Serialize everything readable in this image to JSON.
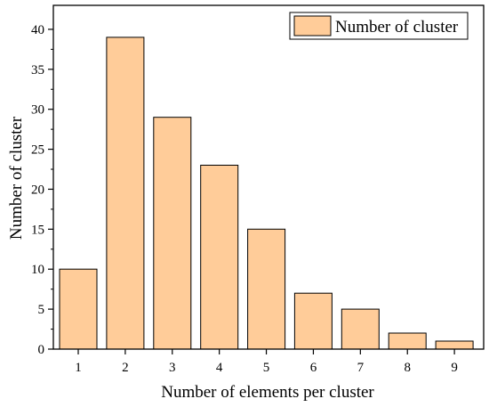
{
  "chart_data": {
    "type": "bar",
    "categories": [
      "1",
      "2",
      "3",
      "4",
      "5",
      "6",
      "7",
      "8",
      "9"
    ],
    "series": [
      {
        "name": "Number of cluster",
        "values": [
          10,
          39,
          29,
          23,
          15,
          7,
          5,
          2,
          1
        ],
        "color": "#FFCC99"
      }
    ],
    "xlabel": "Number of elements per cluster",
    "ylabel": "Number of cluster",
    "ylim": [
      0,
      43
    ],
    "yticks": [
      "0",
      "5",
      "10",
      "15",
      "20",
      "25",
      "30",
      "35",
      "40"
    ],
    "grid": false,
    "legend_position": "top-right"
  },
  "colors": {
    "bar_fill": "#FFCC99",
    "bar_stroke": "#000000",
    "axis": "#000000"
  }
}
